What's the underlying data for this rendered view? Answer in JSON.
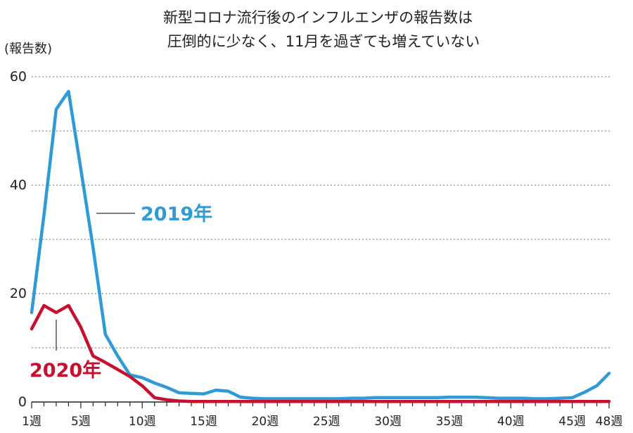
{
  "chart_data": {
    "type": "line",
    "title_lines": [
      "新型コロナ流行後のインフルエンザの報告数は",
      "圧倒的に少なく、11月を過ぎても増えていない"
    ],
    "ylabel": "(報告数)",
    "ylim": [
      0,
      60
    ],
    "yticks": [
      0,
      20,
      40,
      60
    ],
    "ygrid": [
      10,
      20,
      30,
      40,
      50,
      60
    ],
    "xlim": [
      1,
      48
    ],
    "xticks": [
      {
        "x": 1,
        "label": "1週"
      },
      {
        "x": 5,
        "label": "5週"
      },
      {
        "x": 10,
        "label": "10週"
      },
      {
        "x": 15,
        "label": "15週"
      },
      {
        "x": 20,
        "label": "20週"
      },
      {
        "x": 25,
        "label": "25週"
      },
      {
        "x": 30,
        "label": "30週"
      },
      {
        "x": 35,
        "label": "35週"
      },
      {
        "x": 40,
        "label": "40週"
      },
      {
        "x": 45,
        "label": "45週"
      },
      {
        "x": 48,
        "label": "48週"
      }
    ],
    "grid": true,
    "series": [
      {
        "name": "2019年",
        "color": "#2e9bd6",
        "x": [
          1,
          2,
          3,
          4,
          5,
          6,
          7,
          8,
          9,
          10,
          11,
          12,
          13,
          14,
          15,
          16,
          17,
          18,
          19,
          20,
          21,
          22,
          23,
          24,
          25,
          26,
          27,
          28,
          29,
          30,
          31,
          32,
          33,
          34,
          35,
          36,
          37,
          38,
          39,
          40,
          41,
          42,
          43,
          44,
          45,
          46,
          47,
          48
        ],
        "values": [
          16.5,
          34.5,
          54.0,
          57.3,
          43.0,
          28.5,
          12.5,
          8.5,
          5.0,
          4.5,
          3.5,
          2.7,
          1.7,
          1.6,
          1.5,
          2.2,
          2.0,
          0.9,
          0.7,
          0.6,
          0.6,
          0.6,
          0.6,
          0.6,
          0.6,
          0.6,
          0.7,
          0.7,
          0.8,
          0.8,
          0.8,
          0.8,
          0.8,
          0.8,
          0.9,
          0.9,
          0.9,
          0.8,
          0.7,
          0.7,
          0.7,
          0.6,
          0.6,
          0.7,
          0.8,
          1.8,
          3.0,
          5.3
        ]
      },
      {
        "name": "2020年",
        "color": "#c8102e",
        "x": [
          1,
          2,
          3,
          4,
          5,
          6,
          7,
          8,
          9,
          10,
          11,
          12,
          13,
          14,
          15,
          16,
          17,
          18,
          19,
          20,
          21,
          22,
          23,
          24,
          25,
          26,
          27,
          28,
          29,
          30,
          31,
          32,
          33,
          34,
          35,
          36,
          37,
          38,
          39,
          40,
          41,
          42,
          43,
          44,
          45,
          46,
          47,
          48
        ],
        "values": [
          13.5,
          17.8,
          16.5,
          17.8,
          13.8,
          8.5,
          7.3,
          6.0,
          4.7,
          3.0,
          0.8,
          0.4,
          0.2,
          0.1,
          0.1,
          0.1,
          0.1,
          0.1,
          0.1,
          0.1,
          0.1,
          0.1,
          0.1,
          0.1,
          0.1,
          0.1,
          0.1,
          0.1,
          0.1,
          0.1,
          0.1,
          0.1,
          0.1,
          0.1,
          0.1,
          0.1,
          0.1,
          0.1,
          0.1,
          0.1,
          0.1,
          0.1,
          0.1,
          0.1,
          0.1,
          0.1,
          0.1,
          0.1
        ]
      }
    ]
  }
}
